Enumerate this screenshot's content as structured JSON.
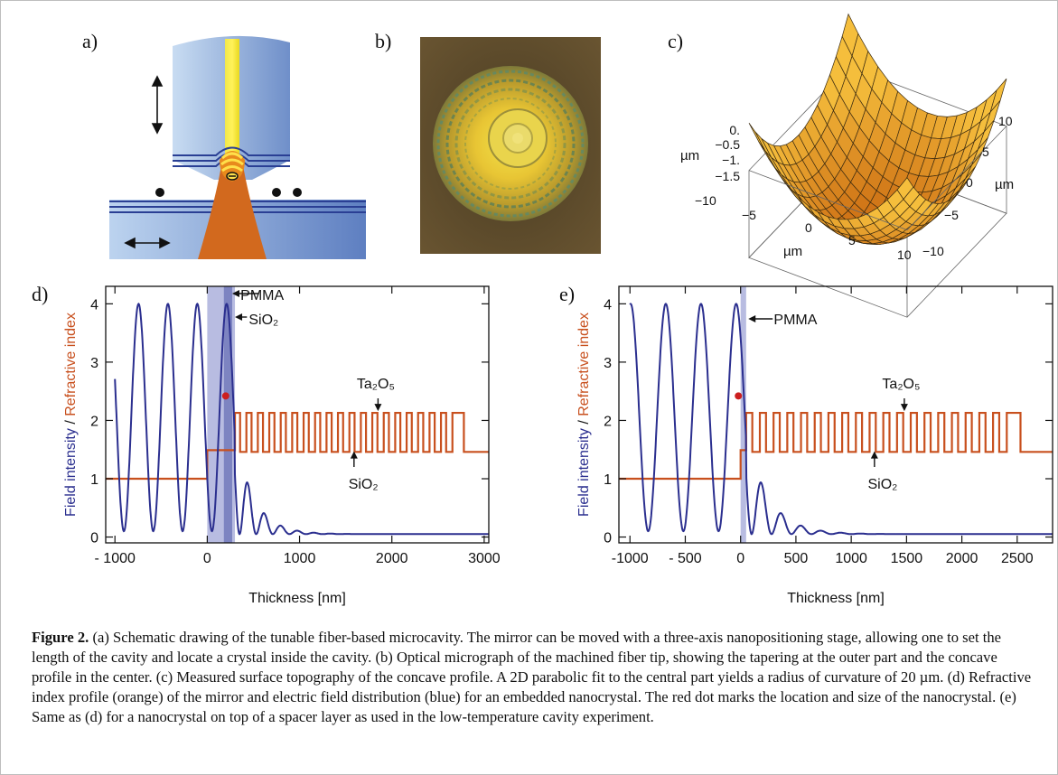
{
  "panels": {
    "a": "a)",
    "b": "b)",
    "c": "c)",
    "d": "d)",
    "e": "e)"
  },
  "panel_c": {
    "zlabel": "µm",
    "zticks": [
      "0.",
      "−0.5",
      "−1.",
      "−1.5"
    ],
    "xlabel": "µm",
    "xticks": [
      "−10",
      "−5",
      "0",
      "5",
      "10"
    ],
    "ylabel": "µm",
    "yticks": [
      "10",
      "5",
      "0",
      "−5",
      "−10"
    ]
  },
  "chart_data": [
    {
      "type": "line",
      "id": "d",
      "xlabel": "Thickness [nm]",
      "ylabel_parts": [
        "Field intensity",
        " / ",
        "Refractive index"
      ],
      "xlim": [
        -1100,
        3050
      ],
      "ylim": [
        -0.1,
        4.3
      ],
      "xticks": [
        "- 1000",
        "0",
        "1000",
        "2000",
        "3000"
      ],
      "yticks": [
        "0",
        "1",
        "2",
        "3",
        "4"
      ],
      "shaded_regions": [
        [
          0,
          300
        ],
        [
          180,
          270
        ]
      ],
      "series": [
        {
          "name": "field intensity",
          "color": "#2b2f8f"
        },
        {
          "name": "refractive index",
          "color": "#c8501e",
          "low": 1.0,
          "n_pmma": 1.49,
          "n_high": 2.13,
          "n_low": 1.46,
          "layers_start": 300,
          "layers_end": 2780,
          "substrate_end": 3050
        }
      ],
      "dot": {
        "x": 200,
        "y": 2.42,
        "color": "#cc1f1f"
      },
      "annotations": {
        "pmma": "PMMA",
        "sio2_top": "SiO₂",
        "ta2o5": "Ta₂O₅",
        "sio2_bottom": "SiO₂"
      }
    },
    {
      "type": "line",
      "id": "e",
      "xlabel": "Thickness [nm]",
      "ylabel_parts": [
        "Field intensity",
        " / ",
        "Refractive index"
      ],
      "xlim": [
        -1100,
        2820
      ],
      "ylim": [
        -0.1,
        4.3
      ],
      "xticks": [
        "-1000",
        "- 500",
        "0",
        "500",
        "1000",
        "1500",
        "2000",
        "2500"
      ],
      "yticks": [
        "0",
        "1",
        "2",
        "3",
        "4"
      ],
      "shaded_regions": [
        [
          0,
          50
        ]
      ],
      "series": [
        {
          "name": "field intensity",
          "color": "#2b2f8f"
        },
        {
          "name": "refractive index",
          "color": "#c8501e",
          "low": 1.0,
          "n_pmma": 1.49,
          "n_high": 2.13,
          "n_low": 1.46,
          "layers_start": 50,
          "layers_end": 2530,
          "substrate_end": 2820
        }
      ],
      "dot": {
        "x": -20,
        "y": 2.42,
        "color": "#cc1f1f"
      },
      "annotations": {
        "pmma": "PMMA",
        "ta2o5": "Ta₂O₅",
        "sio2_bottom": "SiO₂"
      }
    }
  ],
  "caption": {
    "label": "Figure 2.",
    "text": " (a) Schematic drawing of the tunable fiber-based microcavity. The mirror can be moved with a three-axis nanopositioning stage, allowing one to set the length of the cavity and locate a crystal inside the cavity. (b) Optical micrograph of the machined fiber tip, showing the tapering at the outer part and the concave profile in the center. (c) Measured surface topography of the concave profile. A 2D parabolic fit to the central part yields a radius of curvature of 20 µm. (d) Refractive index profile (orange) of the mirror and electric field distribution (blue) for an embedded nanocrystal. The red dot marks the location and size of the nanocrystal. (e) Same as (d) for a nanocrystal on top of a spacer layer as used in the low-temperature cavity experiment."
  }
}
